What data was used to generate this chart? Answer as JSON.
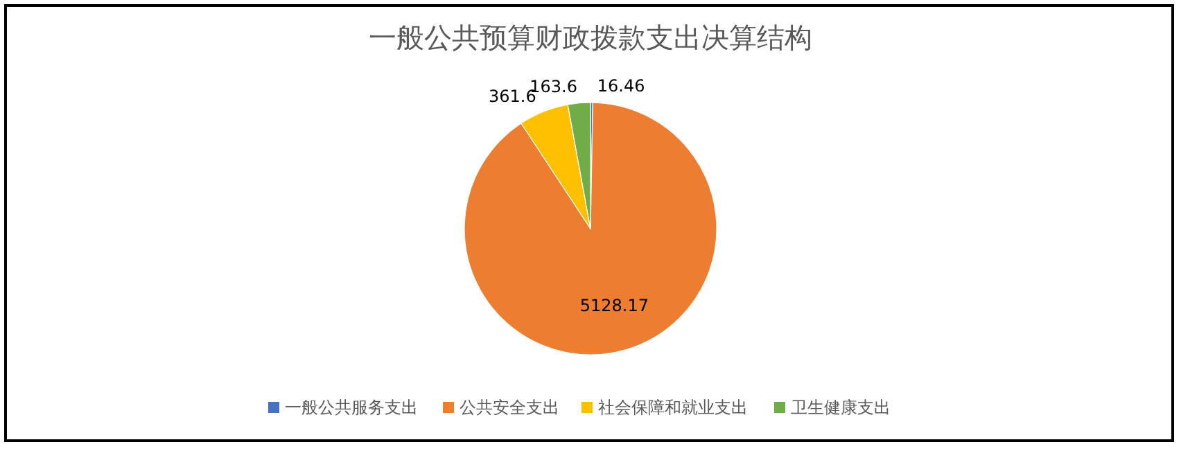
{
  "chart_data": {
    "type": "pie",
    "title": "一般公共预算财政拨款支出决算结构",
    "categories": [
      "一般公共服务支出",
      "公共安全支出",
      "社会保障和就业支出",
      "卫生健康支出"
    ],
    "values": [
      16.46,
      5128.17,
      361.6,
      163.6
    ],
    "colors": [
      "#4472c4",
      "#ed7d31",
      "#ffc000",
      "#70ad47"
    ],
    "data_labels": true,
    "legend": "bottom"
  }
}
